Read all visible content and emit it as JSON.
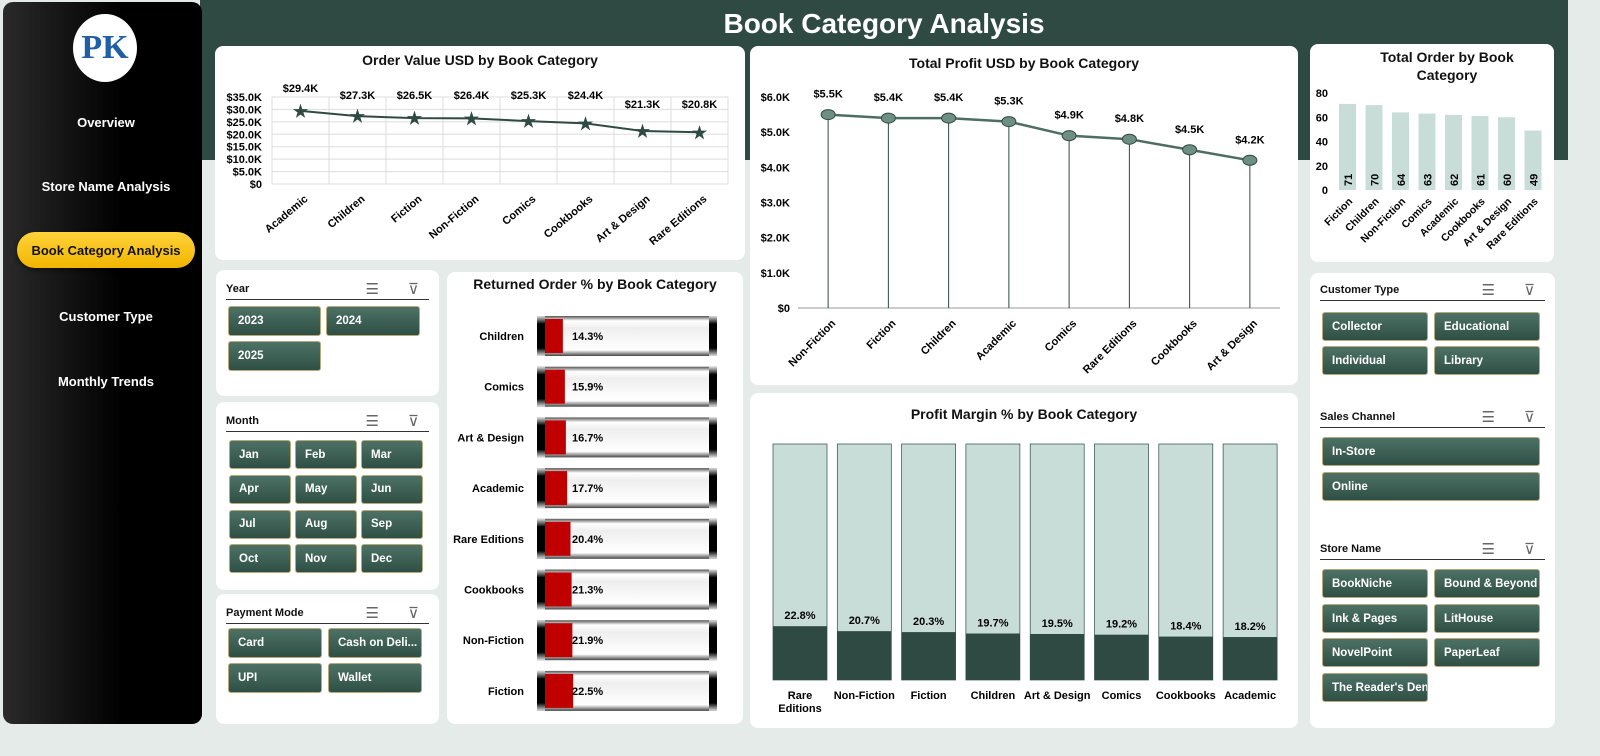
{
  "header": {
    "title": "Book Category Analysis"
  },
  "sidebar": {
    "logo_text": "PK",
    "items": [
      {
        "label": "Overview"
      },
      {
        "label": "Store Name Analysis"
      },
      {
        "label": "Book Category Analysis",
        "active": true
      },
      {
        "label": "Customer Type"
      },
      {
        "label": "Monthly Trends"
      }
    ]
  },
  "colors": {
    "dark_green": "#2f4a43",
    "accent_yellow": "#f5c000",
    "light_bar": "#c9ddd8",
    "red": "#c00000"
  },
  "slicers": {
    "year": {
      "title": "Year",
      "options": [
        "2023",
        "2024",
        "2025"
      ]
    },
    "month": {
      "title": "Month",
      "options": [
        "Jan",
        "Feb",
        "Mar",
        "Apr",
        "May",
        "Jun",
        "Jul",
        "Aug",
        "Sep",
        "Oct",
        "Nov",
        "Dec"
      ]
    },
    "payment": {
      "title": "Payment Mode",
      "options": [
        "Card",
        "Cash on Deli...",
        "UPI",
        "Wallet"
      ]
    },
    "customer_type": {
      "title": "Customer Type",
      "options": [
        "Collector",
        "Educational",
        "Individual",
        "Library"
      ]
    },
    "sales_channel": {
      "title": "Sales Channel",
      "options": [
        "In-Store",
        "Online"
      ]
    },
    "store_name": {
      "title": "Store Name",
      "options": [
        "BookNiche",
        "Bound & Beyond",
        "Ink & Pages",
        "LitHouse",
        "NovelPoint",
        "PaperLeaf",
        "The Reader's Den"
      ]
    }
  },
  "chart_data": [
    {
      "id": "order_value",
      "type": "line",
      "title": "Order Value USD by Book Category",
      "categories": [
        "Academic",
        "Children",
        "Fiction",
        "Non-Fiction",
        "Comics",
        "Cookbooks",
        "Art & Design",
        "Rare Editions"
      ],
      "values": [
        29.4,
        27.3,
        26.5,
        26.4,
        25.3,
        24.4,
        21.3,
        20.8
      ],
      "labels": [
        "$29.4K",
        "$27.3K",
        "$26.5K",
        "$26.4K",
        "$25.3K",
        "$24.4K",
        "$21.3K",
        "$20.8K"
      ],
      "ylim": [
        0,
        35
      ],
      "yticks": [
        "$0",
        "$5.0K",
        "$10.0K",
        "$15.0K",
        "$20.0K",
        "$25.0K",
        "$30.0K",
        "$35.0K"
      ],
      "grid": true
    },
    {
      "id": "total_profit",
      "type": "line",
      "title": "Total Profit USD by Book Category",
      "categories": [
        "Non-Fiction",
        "Fiction",
        "Children",
        "Academic",
        "Comics",
        "Rare Editions",
        "Cookbooks",
        "Art & Design"
      ],
      "values": [
        5.5,
        5.4,
        5.4,
        5.3,
        4.9,
        4.8,
        4.5,
        4.2
      ],
      "labels": [
        "$5.5K",
        "$5.4K",
        "$5.4K",
        "$5.3K",
        "$4.9K",
        "$4.8K",
        "$4.5K",
        "$4.2K"
      ],
      "ylim": [
        0,
        6
      ],
      "yticks": [
        "$0",
        "$1.0K",
        "$2.0K",
        "$3.0K",
        "$4.0K",
        "$5.0K",
        "$6.0K"
      ]
    },
    {
      "id": "total_order",
      "type": "bar",
      "title": "Total Order by Book Category",
      "categories": [
        "Fiction",
        "Children",
        "Non-Fiction",
        "Comics",
        "Academic",
        "Cookbooks",
        "Art & Design",
        "Rare Editions"
      ],
      "values": [
        71,
        70,
        64,
        63,
        62,
        61,
        60,
        49
      ],
      "ylim": [
        0,
        80
      ],
      "yticks": [
        "0",
        "20",
        "40",
        "60",
        "80"
      ]
    },
    {
      "id": "returned_order",
      "type": "bar",
      "title": "Returned Order % by Book Category",
      "categories": [
        "Children",
        "Comics",
        "Art & Design",
        "Academic",
        "Rare Editions",
        "Cookbooks",
        "Non-Fiction",
        "Fiction"
      ],
      "values": [
        14.3,
        15.9,
        16.7,
        17.7,
        20.4,
        21.3,
        21.9,
        22.5
      ],
      "labels": [
        "14.3%",
        "15.9%",
        "16.7%",
        "17.7%",
        "20.4%",
        "21.3%",
        "21.9%",
        "22.5%"
      ]
    },
    {
      "id": "profit_margin",
      "type": "bar",
      "title": "Profit Margin % by Book Category",
      "categories": [
        "Rare Editions",
        "Non-Fiction",
        "Fiction",
        "Children",
        "Art & Design",
        "Comics",
        "Cookbooks",
        "Academic"
      ],
      "values": [
        22.8,
        20.7,
        20.3,
        19.7,
        19.5,
        19.2,
        18.4,
        18.2
      ],
      "labels": [
        "22.8%",
        "20.7%",
        "20.3%",
        "19.7%",
        "19.5%",
        "19.2%",
        "18.4%",
        "18.2%"
      ],
      "ylim": [
        0,
        100
      ]
    }
  ]
}
